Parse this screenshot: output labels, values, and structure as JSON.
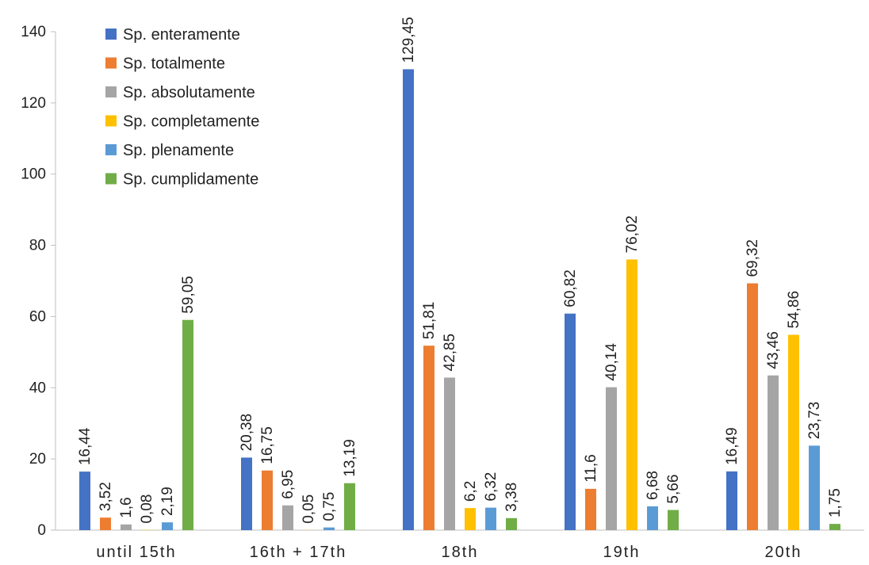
{
  "chart_data": {
    "type": "bar",
    "title": "",
    "xlabel": "",
    "ylabel": "",
    "ylim": [
      0,
      140
    ],
    "yticks": [
      0,
      20,
      40,
      60,
      80,
      100,
      120,
      140
    ],
    "grid": false,
    "legend_position": "top-left",
    "categories": [
      "until 15th",
      "16th + 17th",
      "18th",
      "19th",
      "20th"
    ],
    "series": [
      {
        "name": "Sp. enteramente",
        "color": "#4472C4",
        "values": [
          16.44,
          20.38,
          129.45,
          60.82,
          16.49
        ],
        "labels": [
          "16,44",
          "20,38",
          "129,45",
          "60,82",
          "16,49"
        ]
      },
      {
        "name": "Sp. totalmente",
        "color": "#ED7D31",
        "values": [
          3.52,
          16.75,
          51.81,
          11.6,
          69.32
        ],
        "labels": [
          "3,52",
          "16,75",
          "51,81",
          "11,6",
          "69,32"
        ]
      },
      {
        "name": "Sp. absolutamente",
        "color": "#A5A5A5",
        "values": [
          1.6,
          6.95,
          42.85,
          40.14,
          43.46
        ],
        "labels": [
          "1,6",
          "6,95",
          "42,85",
          "40,14",
          "43,46"
        ]
      },
      {
        "name": "Sp. completamente",
        "color": "#FFC000",
        "values": [
          0.08,
          0.05,
          6.2,
          76.02,
          54.86
        ],
        "labels": [
          "0,08",
          "0,05",
          "6,2",
          "76,02",
          "54,86"
        ]
      },
      {
        "name": "Sp. plenamente",
        "color": "#5B9BD5",
        "values": [
          2.19,
          0.75,
          6.32,
          6.68,
          23.73
        ],
        "labels": [
          "2,19",
          "0,75",
          "6,32",
          "6,68",
          "23,73"
        ]
      },
      {
        "name": "Sp. cumplidamente",
        "color": "#70AD47",
        "values": [
          59.05,
          13.19,
          3.38,
          5.66,
          1.75
        ],
        "labels": [
          "59,05",
          "13,19",
          "3,38",
          "5,66",
          "1,75"
        ]
      }
    ]
  }
}
